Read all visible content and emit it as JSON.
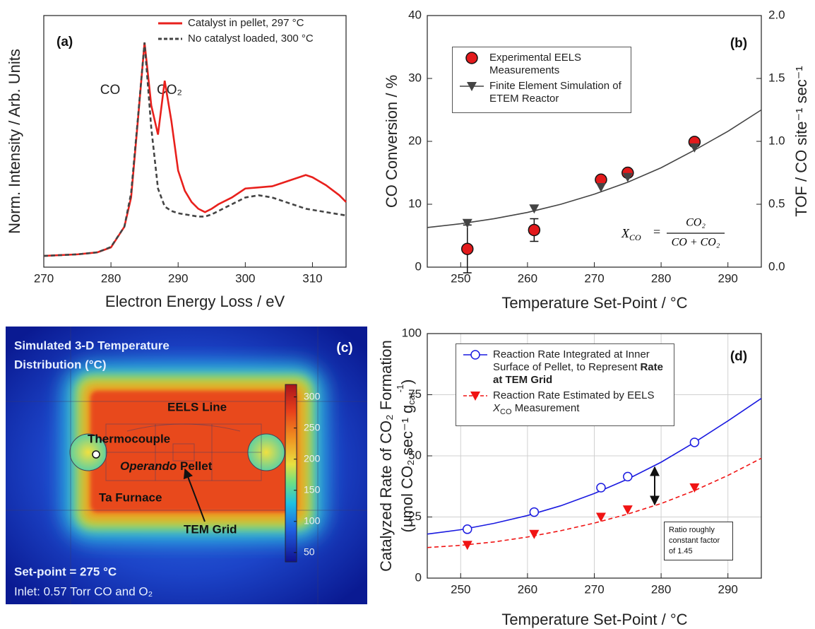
{
  "chart_data": [
    {
      "type": "line",
      "label": "(a)",
      "xlabel": "Electron Energy Loss / eV",
      "ylabel": "Norm. Intensity / Arb. Units",
      "peak_labels": [
        "CO",
        "CO₂"
      ],
      "x": [
        270,
        275,
        278,
        280,
        282,
        283,
        284,
        285,
        286,
        287,
        288,
        289,
        290,
        291,
        292,
        293,
        294,
        295,
        296,
        298,
        300,
        302,
        304,
        306,
        308,
        309,
        310,
        312,
        314,
        315
      ],
      "xlim": [
        270,
        315
      ],
      "xticks": [
        270,
        280,
        290,
        300,
        310
      ],
      "ylim": [
        0,
        1.12
      ],
      "series": [
        {
          "name": "Catalyst in pellet, 297 °C",
          "color": "#e8201c",
          "dash": false,
          "values": [
            0.05,
            0.057,
            0.066,
            0.088,
            0.18,
            0.31,
            0.65,
            1.0,
            0.72,
            0.59,
            0.83,
            0.65,
            0.43,
            0.34,
            0.29,
            0.26,
            0.245,
            0.26,
            0.28,
            0.31,
            0.35,
            0.355,
            0.36,
            0.38,
            0.4,
            0.41,
            0.4,
            0.365,
            0.32,
            0.29
          ]
        },
        {
          "name": "No catalyst loaded, 300 °C",
          "color": "#444444",
          "dash": true,
          "values": [
            0.05,
            0.057,
            0.066,
            0.09,
            0.18,
            0.33,
            0.66,
            1.0,
            0.62,
            0.35,
            0.27,
            0.25,
            0.24,
            0.235,
            0.23,
            0.225,
            0.225,
            0.235,
            0.25,
            0.28,
            0.31,
            0.32,
            0.31,
            0.29,
            0.27,
            0.26,
            0.255,
            0.245,
            0.235,
            0.23
          ]
        }
      ]
    },
    {
      "type": "scatter",
      "label": "(b)",
      "xlabel": "Temperature Set-Point / °C",
      "ylabel": "CO Conversion / %",
      "y2label": "TOF / CO site⁻¹ sec⁻¹",
      "formula": {
        "lhs": "X",
        "lhs_sub": "CO",
        "equals": "=",
        "numerator": "CO₂",
        "denominator": "CO + CO₂"
      },
      "xlim": [
        245,
        295
      ],
      "xticks": [
        250,
        260,
        270,
        280,
        290
      ],
      "ylim": [
        0,
        40
      ],
      "yticks": [
        0,
        10,
        20,
        30,
        40
      ],
      "y2lim": [
        0,
        2.0
      ],
      "y2ticks": [
        {
          "value": 0,
          "label": "0.0"
        },
        0.5,
        {
          "value": 1,
          "label": "1.0"
        },
        1.5,
        {
          "value": 2,
          "label": "2.0"
        }
      ],
      "series": [
        {
          "name": "Experimental EELS Measurements",
          "color": "#e31a1c",
          "marker": "circle",
          "x": [
            251,
            261,
            271,
            275,
            285
          ],
          "values": [
            2.9,
            5.9,
            13.9,
            15.0,
            19.9
          ],
          "errors": [
            3.8,
            1.8,
            0.6,
            0.5,
            0.5
          ]
        },
        {
          "name": "Finite Element Simulation of ETEM Reactor",
          "color": "#444444",
          "marker": "triangle-down",
          "x": [
            251,
            261,
            271,
            275,
            285
          ],
          "values": [
            7.0,
            9.3,
            12.7,
            14.3,
            19.0
          ],
          "curve": {
            "x": [
              245,
              250,
              255,
              260,
              265,
              270,
              275,
              280,
              285,
              290,
              295
            ],
            "values": [
              6.3,
              6.9,
              7.7,
              8.7,
              10.0,
              11.6,
              13.5,
              15.8,
              18.6,
              21.6,
              25.0
            ]
          }
        }
      ]
    },
    {
      "type": "scatter",
      "label": "(d)",
      "grid": true,
      "xlabel": "Temperature Set-Point / °C",
      "ylabel": "Catalyzed Rate of CO₂ Formation",
      "ylabel2": {
        "start": "(μmol CO₂ sec⁻¹ g",
        "sub": "cat",
        "sup": "-1",
        "end": ")"
      },
      "annotation": "Ratio roughly constant factor of 1.45",
      "xlim": [
        245,
        295
      ],
      "xticks": [
        250,
        260,
        270,
        280,
        290
      ],
      "ylim": [
        0,
        100
      ],
      "yticks": [
        0,
        25,
        50,
        75,
        100
      ],
      "series": [
        {
          "name": "Reaction Rate Integrated at Inner Surface of Pellet, to Represent",
          "name_bold": "Rate at TEM Grid",
          "color": "#1a1ae0",
          "marker": "open-circle",
          "dash": false,
          "x": [
            251,
            261,
            271,
            275,
            285
          ],
          "values": [
            20,
            27,
            37,
            41.5,
            55.5
          ],
          "curve": {
            "x": [
              245,
              250,
              255,
              260,
              265,
              270,
              275,
              280,
              285,
              290,
              295
            ],
            "values": [
              18.0,
              19.8,
              22.4,
              25.6,
              29.6,
              34.6,
              40.5,
              47.4,
              55.5,
              64.3,
              73.5
            ]
          }
        },
        {
          "name": "Reaction Rate Estimated by EELS",
          "name_var": "X",
          "name_var_sub": "CO",
          "name_tail": "Measurement",
          "color": "#f01414",
          "marker": "triangle-down",
          "dash": true,
          "x": [
            251,
            261,
            271,
            275,
            285
          ],
          "values": [
            13.5,
            18,
            25,
            28,
            37
          ],
          "curve": {
            "x": [
              245,
              250,
              255,
              260,
              265,
              270,
              275,
              280,
              285,
              290,
              295
            ],
            "values": [
              12.5,
              13.4,
              14.8,
              16.8,
              19.4,
              22.5,
              26.2,
              30.5,
              35.8,
              42.0,
              49.0
            ]
          }
        }
      ]
    }
  ],
  "panel_c": {
    "label": "(c)",
    "title": [
      "Simulated 3-D Temperature",
      "Distribution (°C)"
    ],
    "eels_line": "EELS Line",
    "thermocouple": "Thermocouple",
    "pellet_italic": "Operando",
    "pellet": "Pellet",
    "furnace": "Ta Furnace",
    "tem_grid": "TEM Grid",
    "setpoint": "Set-point = 275 °C",
    "inlet": "Inlet: 0.57 Torr CO and O₂",
    "colorbar": {
      "lim": [
        35,
        320
      ],
      "ticks": [
        50,
        100,
        150,
        200,
        250,
        300
      ]
    }
  }
}
